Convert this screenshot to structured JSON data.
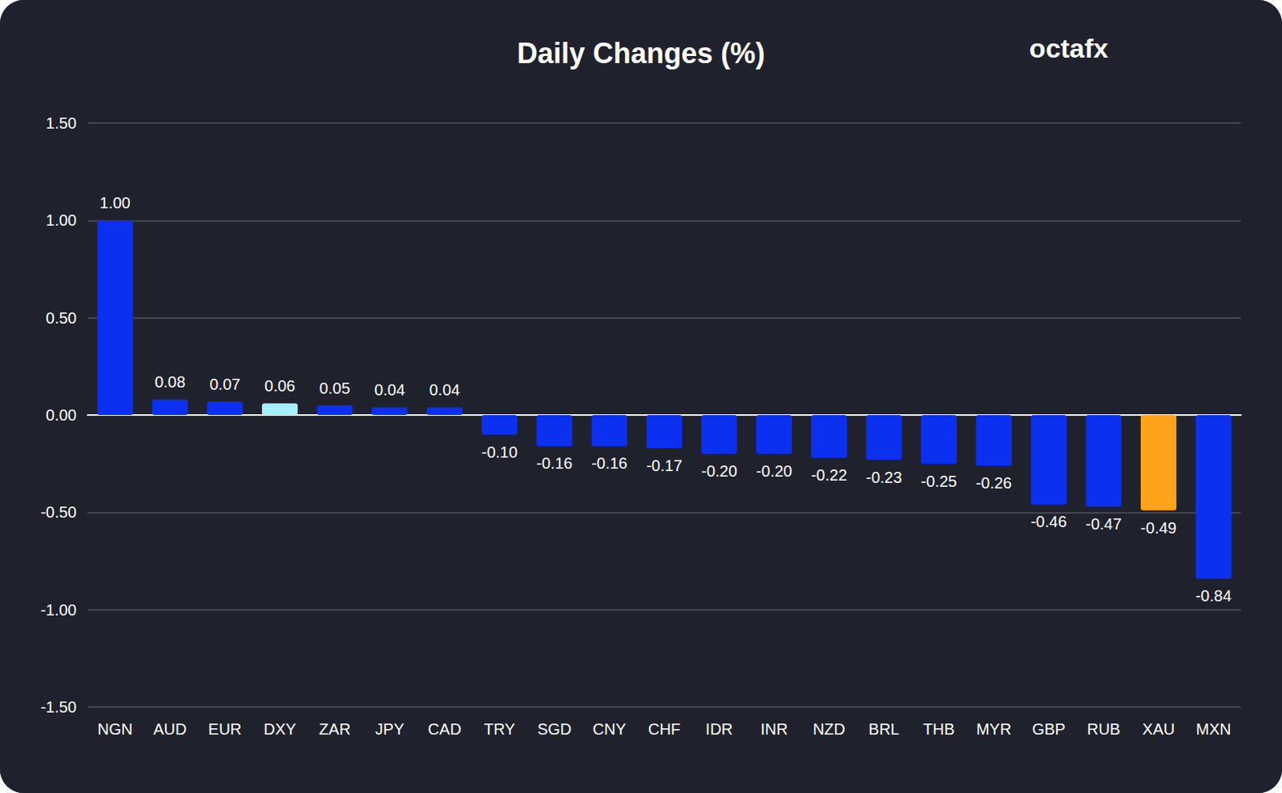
{
  "chart_data": {
    "type": "bar",
    "title": "Daily Changes (%)",
    "logo": "octafx",
    "categories": [
      "NGN",
      "AUD",
      "EUR",
      "DXY",
      "ZAR",
      "JPY",
      "CAD",
      "TRY",
      "SGD",
      "CNY",
      "CHF",
      "IDR",
      "INR",
      "NZD",
      "BRL",
      "THB",
      "MYR",
      "GBP",
      "RUB",
      "XAU",
      "MXN"
    ],
    "values": [
      1.0,
      0.08,
      0.07,
      0.06,
      0.05,
      0.04,
      0.04,
      -0.1,
      -0.16,
      -0.16,
      -0.17,
      -0.2,
      -0.2,
      -0.22,
      -0.23,
      -0.25,
      -0.26,
      -0.46,
      -0.47,
      -0.49,
      -0.84
    ],
    "value_labels": [
      "1.00",
      "0.08",
      "0.07",
      "0.06",
      "0.05",
      "0.04",
      "0.04",
      "-0.10",
      "-0.16",
      "-0.16",
      "-0.17",
      "-0.20",
      "-0.20",
      "-0.22",
      "-0.23",
      "-0.25",
      "-0.26",
      "-0.46",
      "-0.47",
      "-0.49",
      "-0.84"
    ],
    "colors": [
      "#0c30f0",
      "#0c30f0",
      "#0c30f0",
      "#a6efff",
      "#0c30f0",
      "#0c30f0",
      "#0c30f0",
      "#0c30f0",
      "#0c30f0",
      "#0c30f0",
      "#0c30f0",
      "#0c30f0",
      "#0c30f0",
      "#0c30f0",
      "#0c30f0",
      "#0c30f0",
      "#0c30f0",
      "#0c30f0",
      "#0c30f0",
      "#ffa31a",
      "#0c30f0"
    ],
    "ylim": [
      -1.5,
      1.5
    ],
    "yticks": [
      {
        "value": -1.5,
        "label": "-1.50"
      },
      {
        "value": -1,
        "label": "-1.00"
      },
      {
        "value": -0.5,
        "label": "-0.50"
      },
      {
        "value": 0,
        "label": "0.00"
      },
      {
        "value": 0.5,
        "label": "0.50"
      },
      {
        "value": 1,
        "label": "1.00"
      },
      {
        "value": 1.5,
        "label": "1.50"
      }
    ],
    "grid": true,
    "data_labels": true
  }
}
